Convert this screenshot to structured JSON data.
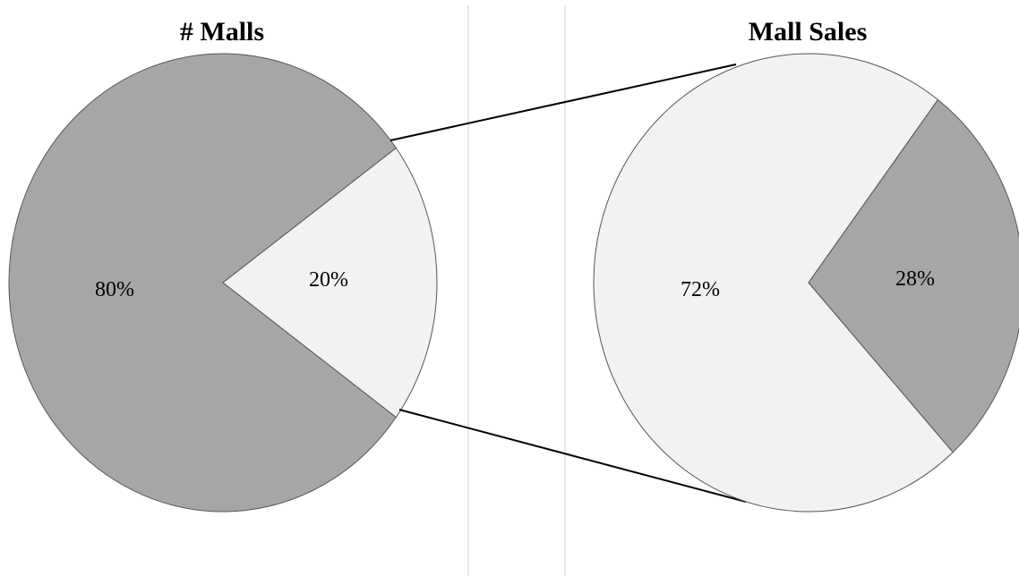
{
  "chart_data": [
    {
      "type": "pie",
      "title": "# Malls",
      "slices": [
        {
          "label": "80%",
          "value": 80,
          "color": "#a6a6a6"
        },
        {
          "label": "20%",
          "value": 20,
          "color": "#f2f2f2"
        }
      ]
    },
    {
      "type": "pie",
      "title": "Mall Sales",
      "slices": [
        {
          "label": "72%",
          "value": 72,
          "color": "#f2f2f2"
        },
        {
          "label": "28%",
          "value": 28,
          "color": "#a6a6a6"
        }
      ]
    }
  ]
}
